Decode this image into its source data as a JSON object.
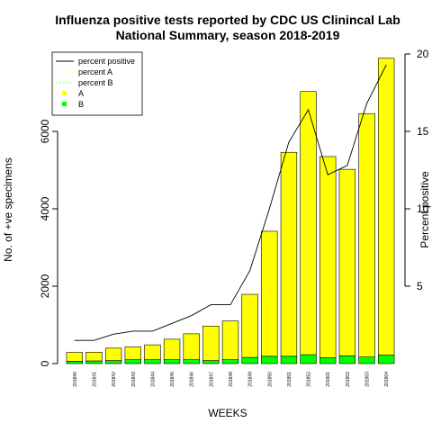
{
  "chart_data": {
    "type": "bar",
    "title_line1": "Influenza positive tests reported by CDC US Clinincal Lab",
    "title_line2": "National Summary, season 2018-2019",
    "xlabel": "WEEKS",
    "ylabel_left": "No. of +ve specimens",
    "ylabel_right": "Percent positive",
    "ylim_left": [
      0,
      8000
    ],
    "ylim_right": [
      0,
      20
    ],
    "yticks_left": [
      0,
      2000,
      4000,
      6000
    ],
    "yticks_right": [
      5,
      10,
      15,
      20
    ],
    "categories": [
      "201840",
      "201841",
      "201842",
      "201843",
      "201844",
      "201845",
      "201846",
      "201847",
      "201848",
      "201849",
      "201850",
      "201851",
      "201852",
      "201901",
      "201902",
      "201903",
      "201904"
    ],
    "series": [
      {
        "name": "A",
        "color": "#ffff00",
        "values": [
          230,
          225,
          320,
          330,
          385,
          530,
          670,
          890,
          1000,
          1630,
          3230,
          5270,
          6800,
          5200,
          4820,
          6290,
          7670
        ]
      },
      {
        "name": "B",
        "color": "#00ff00",
        "values": [
          60,
          70,
          80,
          100,
          100,
          100,
          100,
          80,
          100,
          160,
          190,
          190,
          230,
          150,
          200,
          170,
          220
        ]
      }
    ],
    "lines": [
      {
        "name": "percent positive",
        "color": "#000000",
        "values": [
          1.5,
          1.5,
          1.9,
          2.1,
          2.1,
          2.6,
          3.1,
          3.8,
          3.8,
          6.0,
          10.0,
          14.3,
          16.4,
          12.2,
          12.8,
          16.8,
          19.3
        ]
      }
    ],
    "legend": {
      "position": "top-left",
      "entries": [
        {
          "label": "percent positive",
          "kind": "line",
          "color": "#000000"
        },
        {
          "label": "percent A",
          "kind": "dashed",
          "color": "#ffff66"
        },
        {
          "label": "percent B",
          "kind": "dashed",
          "color": "#99ff66"
        },
        {
          "label": "A",
          "kind": "point",
          "color": "#ffff00"
        },
        {
          "label": "B",
          "kind": "point",
          "color": "#00ff00"
        }
      ]
    }
  }
}
